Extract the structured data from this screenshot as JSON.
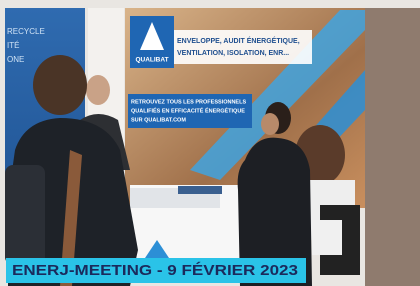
{
  "left_sign": [
    "RECYCLE",
    "ITÉ",
    "ONE"
  ],
  "banner": {
    "brand": "QUALIBAT",
    "headline": [
      "ENVELOPPE, AUDIT ÉNERGÉTIQUE,",
      "VENTILATION, ISOLATION, ENR..."
    ],
    "tagline": [
      "RETROUVEZ TOUS LES PROFESSIONNELS",
      "QUALIFIÉS EN EFFICACITÉ ÉNERGÉTIQUE",
      "SUR QUALIBAT.COM"
    ]
  },
  "caption": "ENERJ-MEETING - 9 FÉVRIER 2023"
}
